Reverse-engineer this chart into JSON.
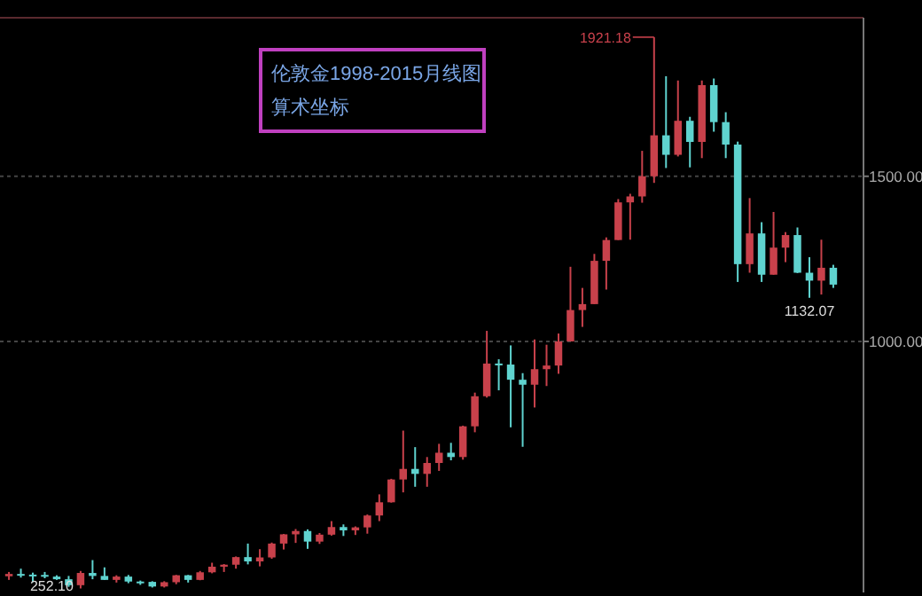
{
  "chart_data": {
    "type": "candlestick",
    "title": "伦敦金1998-2015月线图",
    "subtitle": "算术坐标",
    "categories": [
      null,
      null,
      null,
      null,
      null,
      null,
      null,
      null,
      null,
      null,
      null,
      null,
      null,
      null,
      null,
      null,
      null,
      null,
      null,
      null,
      null,
      null,
      null,
      null,
      null,
      null,
      null,
      null,
      null,
      null,
      null,
      null,
      null,
      null,
      null,
      null,
      null,
      null,
      null,
      null,
      null,
      null,
      null,
      null,
      null,
      null,
      null,
      null,
      null,
      null,
      null,
      null,
      null,
      null,
      null,
      null,
      null,
      null,
      null,
      null,
      null,
      null,
      null,
      null,
      null,
      null,
      null,
      null,
      null,
      null
    ],
    "ohlc": [
      [
        289,
        302,
        278,
        296
      ],
      [
        296,
        312,
        285,
        294
      ],
      [
        294,
        300,
        271,
        293
      ],
      [
        293,
        302,
        283,
        288
      ],
      [
        288,
        292,
        278,
        280
      ],
      [
        280,
        290,
        257,
        262
      ],
      [
        262,
        305,
        252.1,
        299
      ],
      [
        299,
        338,
        280,
        290
      ],
      [
        290,
        316,
        278,
        278
      ],
      [
        278,
        292,
        270,
        288
      ],
      [
        288,
        293,
        268,
        273
      ],
      [
        273,
        276,
        263,
        272
      ],
      [
        272,
        274,
        255,
        258
      ],
      [
        258,
        274,
        255,
        271
      ],
      [
        271,
        293,
        265,
        292
      ],
      [
        292,
        293,
        270,
        278
      ],
      [
        278,
        305,
        277,
        301
      ],
      [
        301,
        330,
        298,
        318
      ],
      [
        318,
        326,
        302,
        324
      ],
      [
        324,
        349,
        312,
        347
      ],
      [
        347,
        388,
        325,
        334
      ],
      [
        334,
        371,
        319,
        346
      ],
      [
        346,
        391,
        342,
        388
      ],
      [
        388,
        417,
        370,
        416
      ],
      [
        416,
        432,
        390,
        426
      ],
      [
        426,
        431,
        372,
        394
      ],
      [
        394,
        420,
        387,
        415
      ],
      [
        415,
        456,
        412,
        438
      ],
      [
        438,
        446,
        411,
        428
      ],
      [
        428,
        440,
        414,
        437
      ],
      [
        437,
        476,
        418,
        473
      ],
      [
        473,
        537,
        456,
        513
      ],
      [
        513,
        584,
        512,
        582
      ],
      [
        582,
        730,
        543,
        614
      ],
      [
        614,
        680,
        560,
        599
      ],
      [
        599,
        650,
        560,
        632
      ],
      [
        632,
        690,
        608,
        663
      ],
      [
        663,
        693,
        640,
        650
      ],
      [
        650,
        745,
        642,
        743
      ],
      [
        743,
        845,
        725,
        834
      ],
      [
        834,
        1032,
        830,
        933
      ],
      [
        933,
        946,
        852,
        930
      ],
      [
        930,
        988,
        740,
        884
      ],
      [
        884,
        904,
        681,
        869
      ],
      [
        869,
        1006,
        800,
        916
      ],
      [
        916,
        990,
        865,
        927
      ],
      [
        927,
        1024,
        902,
        1000
      ],
      [
        1000,
        1226,
        1000,
        1095
      ],
      [
        1095,
        1162,
        1044,
        1113
      ],
      [
        1113,
        1265,
        1113,
        1244
      ],
      [
        1244,
        1315,
        1157,
        1307
      ],
      [
        1307,
        1431,
        1307,
        1421
      ],
      [
        1421,
        1447,
        1308,
        1439
      ],
      [
        1439,
        1577,
        1420,
        1500
      ],
      [
        1500,
        1921.18,
        1480,
        1624
      ],
      [
        1624,
        1803,
        1525,
        1565
      ],
      [
        1565,
        1790,
        1560,
        1668
      ],
      [
        1668,
        1680,
        1527,
        1604
      ],
      [
        1604,
        1790,
        1555,
        1776
      ],
      [
        1776,
        1796,
        1635,
        1664
      ],
      [
        1664,
        1694,
        1555,
        1596
      ],
      [
        1596,
        1605,
        1180,
        1234
      ],
      [
        1234,
        1434,
        1208,
        1327
      ],
      [
        1327,
        1361,
        1180,
        1202
      ],
      [
        1202,
        1392,
        1202,
        1284
      ],
      [
        1284,
        1331,
        1240,
        1322
      ],
      [
        1322,
        1345,
        1207,
        1208
      ],
      [
        1208,
        1255,
        1132.07,
        1184
      ],
      [
        1184,
        1308,
        1142,
        1223
      ],
      [
        1223,
        1232,
        1162,
        1172
      ]
    ],
    "colors": [
      "#c8414b",
      "#5fd3cf",
      "#5fd3cf",
      "#5fd3cf",
      "#5fd3cf",
      "#5fd3cf",
      "#c8414b",
      "#5fd3cf",
      "#5fd3cf",
      "#c8414b",
      "#5fd3cf",
      "#5fd3cf",
      "#5fd3cf",
      "#c8414b",
      "#c8414b",
      "#5fd3cf",
      "#c8414b",
      "#c8414b",
      "#c8414b",
      "#c8414b",
      "#5fd3cf",
      "#c8414b",
      "#c8414b",
      "#c8414b",
      "#c8414b",
      "#5fd3cf",
      "#c8414b",
      "#c8414b",
      "#5fd3cf",
      "#c8414b",
      "#c8414b",
      "#c8414b",
      "#c8414b",
      "#c8414b",
      "#5fd3cf",
      "#c8414b",
      "#c8414b",
      "#5fd3cf",
      "#c8414b",
      "#c8414b",
      "#c8414b",
      "#5fd3cf",
      "#5fd3cf",
      "#5fd3cf",
      "#c8414b",
      "#c8414b",
      "#c8414b",
      "#c8414b",
      "#c8414b",
      "#c8414b",
      "#c8414b",
      "#c8414b",
      "#c8414b",
      "#c8414b",
      "#c8414b",
      "#5fd3cf",
      "#c8414b",
      "#5fd3cf",
      "#c8414b",
      "#5fd3cf",
      "#5fd3cf",
      "#5fd3cf",
      "#c8414b",
      "#5fd3cf",
      "#c8414b",
      "#c8414b",
      "#5fd3cf",
      "#5fd3cf",
      "#c8414b",
      "#5fd3cf"
    ],
    "ylim": [
      240,
      1980
    ],
    "yticks": [
      {
        "value": 1000,
        "label": "1000.00"
      },
      {
        "value": 1500,
        "label": "1500.00"
      }
    ],
    "grid": "y",
    "tick_labels": "y",
    "annotations": [
      "1921.18",
      "1132.07",
      "252.10"
    ]
  }
}
